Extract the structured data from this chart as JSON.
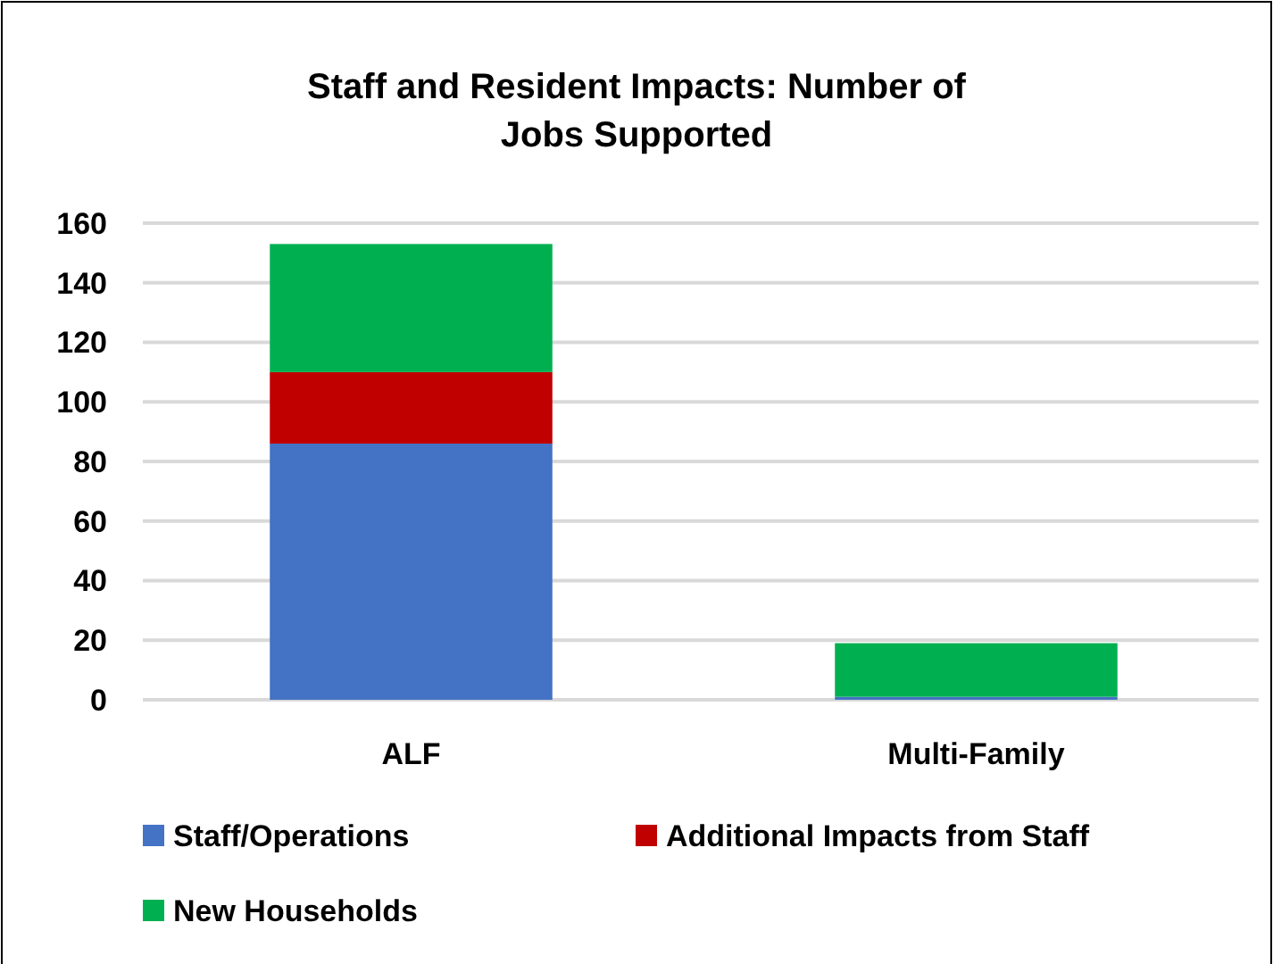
{
  "chart_data": {
    "type": "bar",
    "title": "Staff and Resident Impacts: Number of Jobs Supported",
    "categories": [
      "ALF",
      "Multi-Family"
    ],
    "stacked": true,
    "series": [
      {
        "name": "Staff/Operations",
        "color": "#4472c4",
        "values": [
          86,
          1
        ]
      },
      {
        "name": "Additional Impacts from Staff",
        "color": "#c00000",
        "values": [
          24,
          0
        ]
      },
      {
        "name": "New Households",
        "color": "#00b050",
        "values": [
          43,
          18
        ]
      }
    ],
    "ylim": [
      0,
      160
    ],
    "yticks": [
      0,
      20,
      40,
      60,
      80,
      100,
      120,
      140,
      160
    ],
    "grid": "y",
    "legend": "bottom"
  }
}
